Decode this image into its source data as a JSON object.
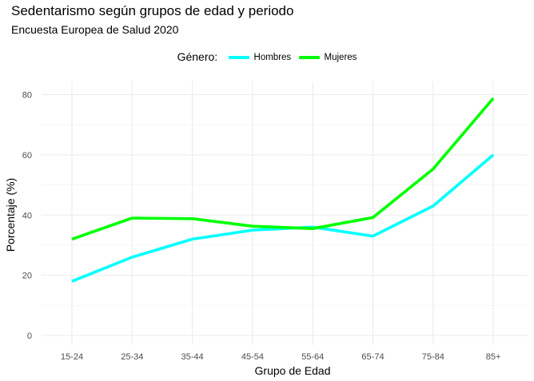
{
  "chart_data": {
    "type": "line",
    "title": "Sedentarismo según grupos de edad y periodo",
    "subtitle": "Encuesta Europea de Salud 2020",
    "xlabel": "Grupo de Edad",
    "ylabel": "Porcentaje (%)",
    "legend_title": "Género:",
    "legend_position": "top",
    "grid": true,
    "ylim": [
      0,
      80
    ],
    "yticks": [
      0,
      20,
      40,
      60,
      80
    ],
    "categories": [
      "15-24",
      "25-34",
      "35-44",
      "45-54",
      "55-64",
      "65-74",
      "75-84",
      "85+"
    ],
    "series": [
      {
        "name": "Hombres",
        "color": "#00ffff",
        "values": [
          18,
          26,
          32,
          35,
          36,
          33,
          43,
          60
        ]
      },
      {
        "name": "Mujeres",
        "color": "#00ff00",
        "values": [
          32,
          39,
          38.8,
          36.3,
          35.5,
          39.2,
          55.3,
          78.8
        ]
      }
    ]
  }
}
